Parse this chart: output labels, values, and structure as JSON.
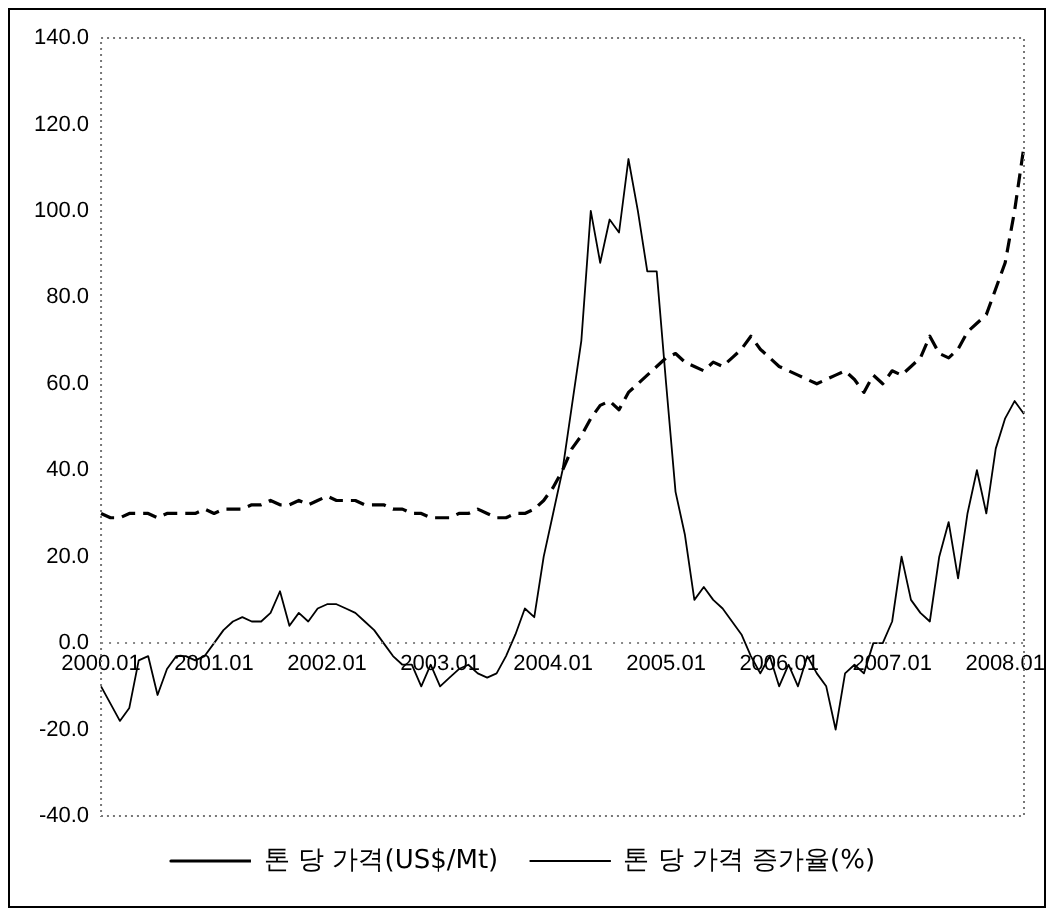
{
  "chart_data": {
    "type": "line",
    "categories": [
      "2000.01",
      null,
      null,
      null,
      null,
      null,
      null,
      null,
      null,
      null,
      null,
      null,
      "2001.01",
      null,
      null,
      null,
      null,
      null,
      null,
      null,
      null,
      null,
      null,
      null,
      "2002.01",
      null,
      null,
      null,
      null,
      null,
      null,
      null,
      null,
      null,
      null,
      null,
      "2003.01",
      null,
      null,
      null,
      null,
      null,
      null,
      null,
      null,
      null,
      null,
      null,
      "2004.01",
      null,
      null,
      null,
      null,
      null,
      null,
      null,
      null,
      null,
      null,
      null,
      "2005.01",
      null,
      null,
      null,
      null,
      null,
      null,
      null,
      null,
      null,
      null,
      null,
      "2006.01",
      null,
      null,
      null,
      null,
      null,
      null,
      null,
      null,
      null,
      null,
      null,
      "2007.01",
      null,
      null,
      null,
      null,
      null,
      null,
      null,
      null,
      null,
      null,
      null,
      "2008.01",
      null,
      null
    ],
    "series": [
      {
        "name": "톤 당 가격(US$/Mt)",
        "color": "#000000",
        "line_style": "dashed",
        "values": [
          30,
          29,
          29,
          30,
          30,
          30,
          29,
          30,
          30,
          30,
          30,
          31,
          30,
          31,
          31,
          31,
          32,
          32,
          33,
          32,
          32,
          33,
          32,
          33,
          34,
          33,
          33,
          33,
          32,
          32,
          32,
          31,
          31,
          30,
          30,
          29,
          29,
          29,
          30,
          30,
          31,
          30,
          29,
          29,
          30,
          30,
          31,
          33,
          36,
          40,
          45,
          48,
          52,
          55,
          56,
          54,
          58,
          60,
          62,
          64,
          66,
          67,
          65,
          64,
          63,
          65,
          64,
          66,
          68,
          71,
          68,
          66,
          64,
          63,
          62,
          61,
          60,
          61,
          62,
          63,
          61,
          58,
          62,
          60,
          63,
          62,
          64,
          66,
          71,
          67,
          66,
          68,
          72,
          74,
          76,
          82,
          88,
          100,
          115
        ]
      },
      {
        "name": "톤 당 가격 증가율(%)",
        "color": "#000000",
        "line_style": "solid",
        "values": [
          -10,
          -14,
          -18,
          -15,
          -4,
          -3,
          -12,
          -6,
          -3,
          -3,
          -4,
          -3,
          0,
          3,
          5,
          6,
          5,
          5,
          7,
          12,
          4,
          7,
          5,
          8,
          9,
          9,
          8,
          7,
          5,
          3,
          0,
          -3,
          -5,
          -5,
          -10,
          -5,
          -10,
          -8,
          -6,
          -5,
          -7,
          -8,
          -7,
          -3,
          2,
          8,
          6,
          20,
          30,
          40,
          55,
          70,
          100,
          88,
          98,
          95,
          112,
          100,
          86,
          86,
          60,
          35,
          25,
          10,
          13,
          10,
          8,
          5,
          2,
          -3,
          -7,
          -3,
          -10,
          -5,
          -10,
          -3,
          -7,
          -10,
          -20,
          -7,
          -5,
          -7,
          0,
          0,
          5,
          20,
          10,
          7,
          5,
          20,
          28,
          15,
          30,
          40,
          30,
          45,
          52,
          56,
          53
        ]
      }
    ],
    "ylim": [
      -40,
      140
    ],
    "yticks": [
      {
        "value": -40,
        "label": "-40.0"
      },
      {
        "value": -20,
        "label": "-20.0"
      },
      {
        "value": 0,
        "label": "0.0"
      },
      {
        "value": 20,
        "label": "20.0"
      },
      {
        "value": 40,
        "label": "40.0"
      },
      {
        "value": 60,
        "label": "60.0"
      },
      {
        "value": 80,
        "label": "80.0"
      },
      {
        "value": 100,
        "label": "100.0"
      },
      {
        "value": 120,
        "label": "120.0"
      },
      {
        "value": 140,
        "label": "140.0"
      }
    ],
    "ref_lines": [
      {
        "axis": "y",
        "value": 0,
        "line_style": "dotted",
        "color": "#888888"
      }
    ],
    "grid": false,
    "legend": "bottom",
    "marker": "none"
  }
}
